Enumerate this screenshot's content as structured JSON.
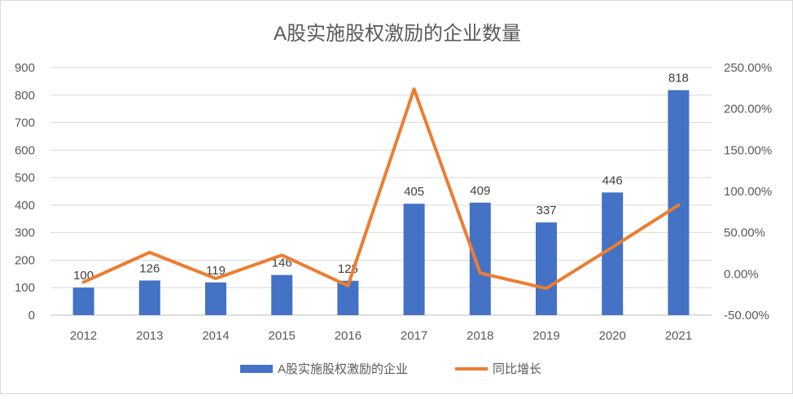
{
  "chart_data": {
    "type": "bar",
    "title": "A股实施股权激励的企业数量",
    "categories": [
      "2012",
      "2013",
      "2014",
      "2015",
      "2016",
      "2017",
      "2018",
      "2019",
      "2020",
      "2021"
    ],
    "series": [
      {
        "name": "A股实施股权激励的企业",
        "type": "bar",
        "axis": "left",
        "color": "#4472C4",
        "values": [
          100,
          126,
          119,
          146,
          125,
          405,
          409,
          337,
          446,
          818
        ],
        "labels": [
          "100",
          "126",
          "119",
          "146",
          "125",
          "405",
          "409",
          "337",
          "446",
          "818"
        ]
      },
      {
        "name": "同比增长",
        "type": "line",
        "axis": "right",
        "color": "#ED7D31",
        "values": [
          -10.0,
          26.0,
          -5.6,
          22.7,
          -14.4,
          224.0,
          1.0,
          -17.6,
          32.3,
          83.4
        ]
      }
    ],
    "left_axis": {
      "ylim": [
        0,
        900
      ],
      "ticks": [
        "0",
        "100",
        "200",
        "300",
        "400",
        "500",
        "600",
        "700",
        "800",
        "900"
      ]
    },
    "right_axis": {
      "ylim": [
        -50,
        250
      ],
      "ticks": [
        "-50.00%",
        "0.00%",
        "50.00%",
        "100.00%",
        "150.00%",
        "200.00%",
        "250.00%"
      ]
    },
    "grid": true,
    "legend": "bottom"
  }
}
